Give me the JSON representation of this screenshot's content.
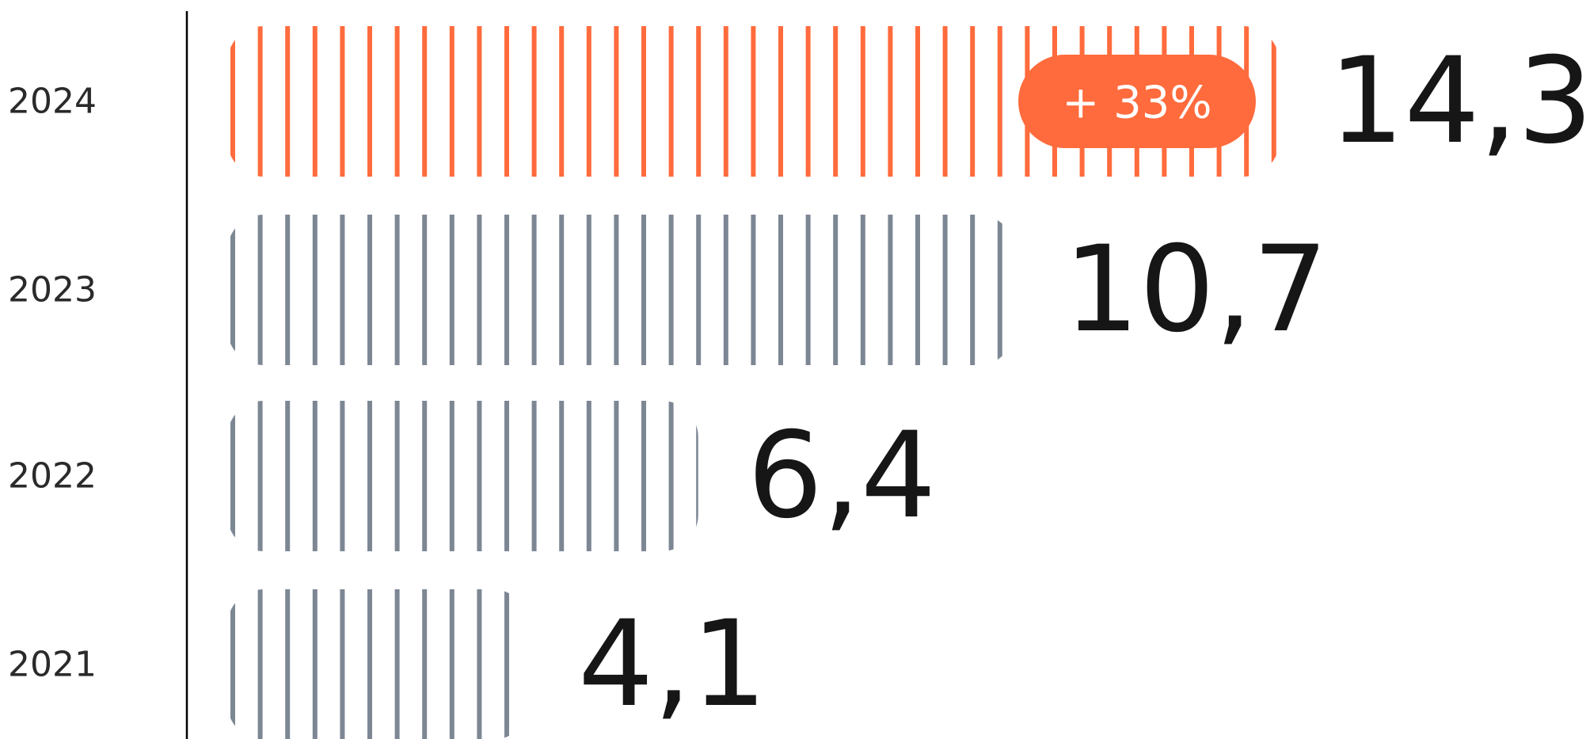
{
  "chart_data": {
    "type": "bar",
    "orientation": "horizontal",
    "categories": [
      "2024",
      "2023",
      "2022",
      "2021"
    ],
    "values": [
      14.3,
      10.7,
      6.4,
      4.1
    ],
    "value_labels": [
      "14,3",
      "10,7",
      "6,4",
      "4,1"
    ],
    "highlight": {
      "category": "2024",
      "badge": "+ 33%"
    },
    "colors": {
      "highlight": "#FF6B3D",
      "default": "#7D8794",
      "text": "#161616",
      "axis": "#000000"
    }
  }
}
